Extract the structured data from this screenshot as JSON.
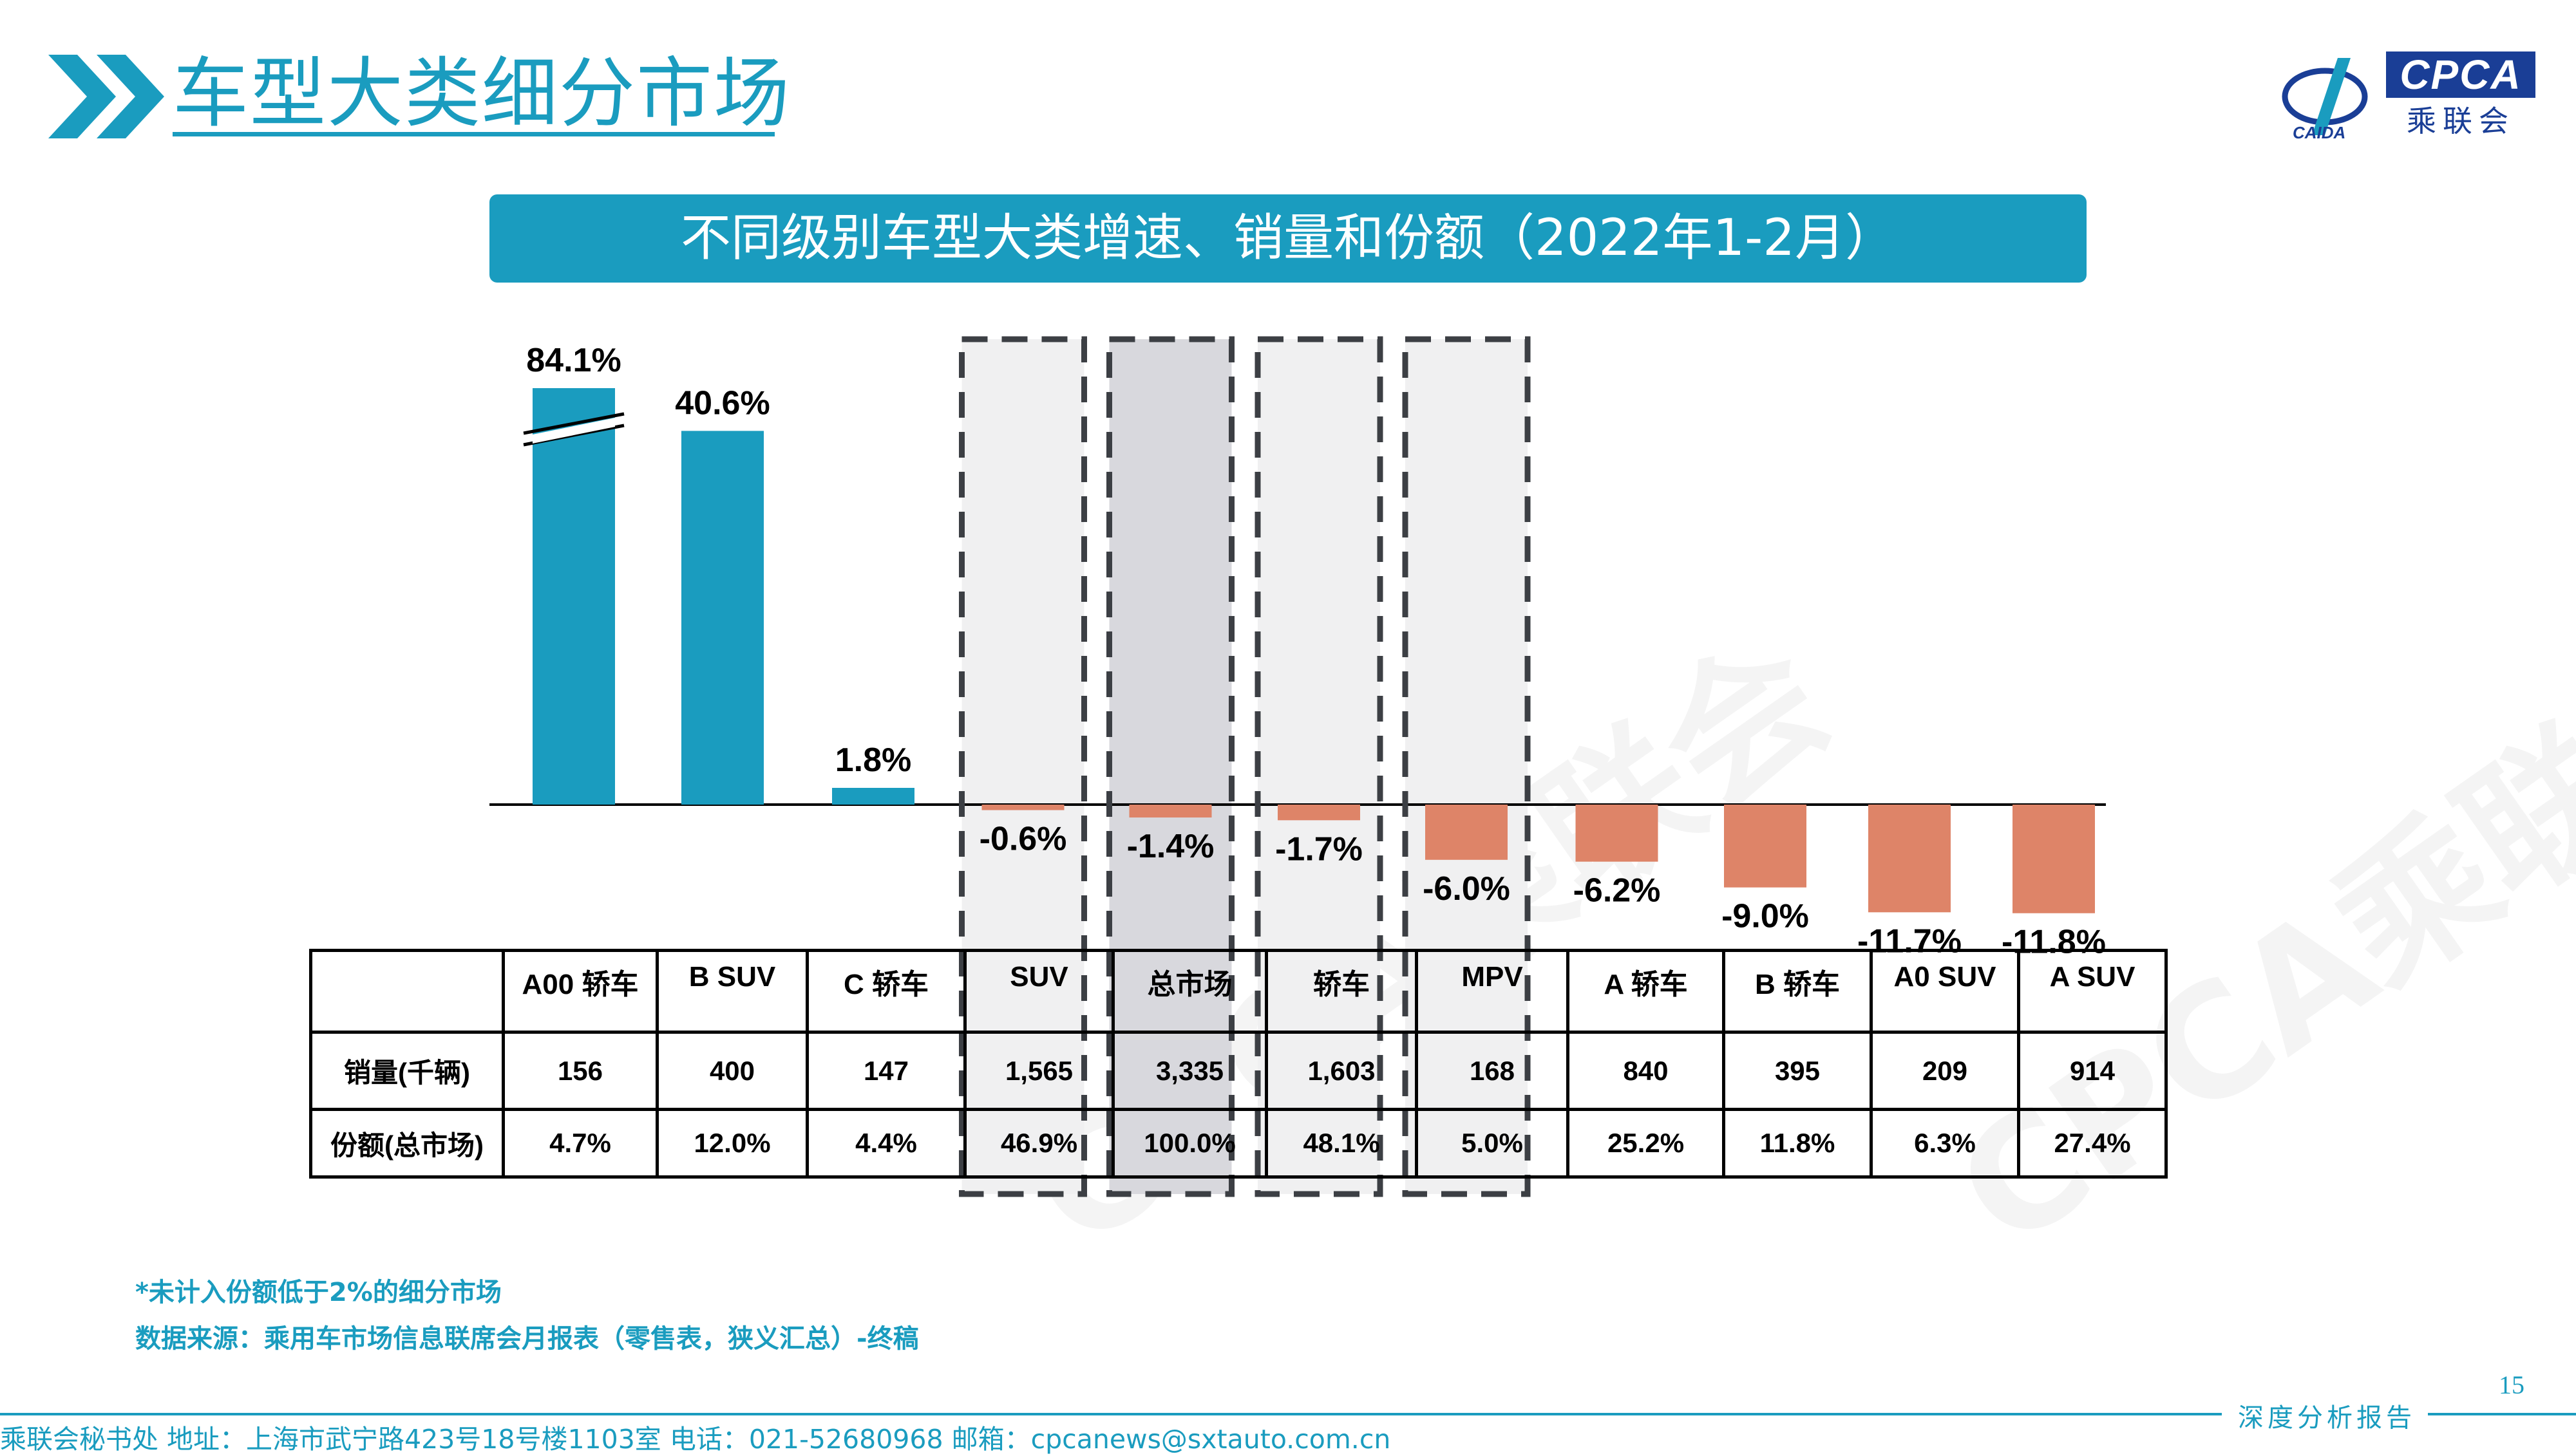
{
  "header": {
    "title": "车型大类细分市场",
    "logo_text": "CPCA",
    "logo_cn": "乘联会"
  },
  "banner": "不同级别车型大类增速、销量和份额（2022年1-2月）",
  "watermark": "CPCA乘联会",
  "chart_data": {
    "type": "bar",
    "categories": [
      "A00 轿车",
      "B SUV",
      "C 轿车",
      "SUV",
      "总市场",
      "轿车",
      "MPV",
      "A 轿车",
      "B 轿车",
      "A0 SUV",
      "A SUV"
    ],
    "values": [
      84.1,
      40.6,
      1.8,
      -0.6,
      -1.4,
      -1.7,
      -6.0,
      -6.2,
      -9.0,
      -11.7,
      -11.8
    ],
    "value_labels": [
      "84.1%",
      "40.6%",
      "1.8%",
      "-0.6%",
      "-1.4%",
      "-1.7%",
      "-6.0%",
      "-6.2%",
      "-9.0%",
      "-11.7%",
      "-11.8%"
    ],
    "axis_break": "A00 轿车",
    "highlighted": [
      "SUV",
      "总市场",
      "轿车",
      "MPV"
    ],
    "colors": {
      "positive": "#1a9cbf",
      "negative": "#de8468",
      "highlight_bg": "#f0f0f1",
      "total_bg": "#d8d8dd",
      "dash": "#3c3f44"
    }
  },
  "table": {
    "row_labels": [
      "销量(千辆)",
      "份额(总市场)"
    ],
    "sales": [
      "156",
      "400",
      "147",
      "1,565",
      "3,335",
      "1,603",
      "168",
      "840",
      "395",
      "209",
      "914"
    ],
    "shares": [
      "4.7%",
      "12.0%",
      "4.4%",
      "46.9%",
      "100.0%",
      "48.1%",
      "5.0%",
      "25.2%",
      "11.8%",
      "6.3%",
      "27.4%"
    ]
  },
  "notes": {
    "note1": "*未计入份额低于2%的细分市场",
    "note2": "数据来源：乘用车市场信息联席会月报表（零售表，狭义汇总）-终稿"
  },
  "footer": {
    "page_number": "15",
    "tag": "深度分析报告",
    "info": "乘联会秘书处   地址：上海市武宁路423号18号楼1103室  电话：021-52680968   邮箱：cpcanews@sxtauto.com.cn"
  }
}
